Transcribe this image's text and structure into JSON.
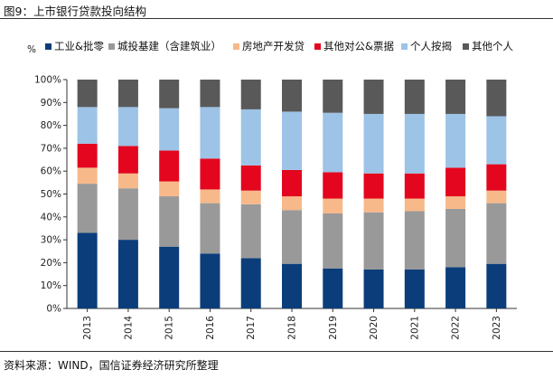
{
  "figure": {
    "title": "图9：上市银行贷款投向结构",
    "source": "资料来源：WIND，国信证券经济研究所整理"
  },
  "chart_data": {
    "type": "bar",
    "stacked": true,
    "categories": [
      "2013",
      "2014",
      "2015",
      "2016",
      "2017",
      "2018",
      "2019",
      "2020",
      "2021",
      "2022",
      "2023"
    ],
    "y_unit_label": "%",
    "ylim": [
      0,
      100
    ],
    "yticks": [
      0,
      10,
      20,
      30,
      40,
      50,
      60,
      70,
      80,
      90,
      100
    ],
    "ytick_labels": [
      "0%",
      "10%",
      "20%",
      "30%",
      "40%",
      "50%",
      "60%",
      "70%",
      "80%",
      "90%",
      "100%"
    ],
    "legend_position": "top",
    "grid": false,
    "series": [
      {
        "name": "工业&批零",
        "color": "#0b3d7a",
        "values": [
          33,
          30,
          27,
          24,
          22,
          19.5,
          17.5,
          17,
          17,
          18,
          19.5
        ]
      },
      {
        "name": "城投基建（含建筑业）",
        "color": "#999999",
        "values": [
          21.5,
          22.5,
          22,
          22,
          23.5,
          23.5,
          24,
          25,
          25.5,
          25.5,
          26.5
        ]
      },
      {
        "name": "房地产开发贷",
        "color": "#f7b98a",
        "values": [
          7,
          6.5,
          6.5,
          6,
          6,
          6,
          6.5,
          6,
          5.5,
          5.5,
          5.5
        ]
      },
      {
        "name": "其他对公&票据",
        "color": "#e3061e",
        "values": [
          10.5,
          12,
          13.5,
          13.5,
          11,
          11.5,
          11.5,
          11,
          11,
          12.5,
          11.5
        ]
      },
      {
        "name": "个人按揭",
        "color": "#9dc3e6",
        "values": [
          16,
          17,
          18.5,
          22.5,
          24.5,
          25.5,
          26,
          26,
          26,
          23.5,
          21
        ]
      },
      {
        "name": "其他个人",
        "color": "#595959",
        "values": [
          12,
          12,
          12.5,
          12,
          13,
          14,
          14.5,
          15,
          15,
          15,
          16
        ]
      }
    ]
  }
}
